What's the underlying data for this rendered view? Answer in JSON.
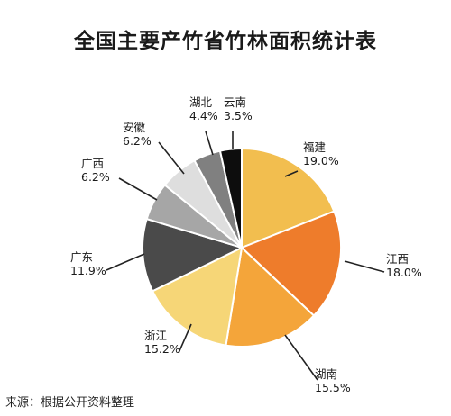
{
  "chart_data": {
    "type": "pie",
    "title": "全国主要产竹省竹林面积统计表",
    "unit": "%",
    "slices": [
      {
        "label": "福建",
        "value": 19.0,
        "display": "19.0%",
        "color": "#F2BE4F"
      },
      {
        "label": "江西",
        "value": 18.0,
        "display": "18.0%",
        "color": "#EE7C2B"
      },
      {
        "label": "湖南",
        "value": 15.5,
        "display": "15.5%",
        "color": "#F4A53A"
      },
      {
        "label": "浙江",
        "value": 15.2,
        "display": "15.2%",
        "color": "#F6D677"
      },
      {
        "label": "广东",
        "value": 11.9,
        "display": "11.9%",
        "color": "#4A4A4A"
      },
      {
        "label": "广西",
        "value": 6.2,
        "display": "6.2%",
        "color": "#A6A6A6"
      },
      {
        "label": "安徽",
        "value": 6.2,
        "display": "6.2%",
        "color": "#DEDEDE"
      },
      {
        "label": "湖北",
        "value": 4.4,
        "display": "4.4%",
        "color": "#808080"
      },
      {
        "label": "云南",
        "value": 3.5,
        "display": "3.5%",
        "color": "#0D0D0D"
      }
    ]
  },
  "source": "来源：根据公开资料整理"
}
